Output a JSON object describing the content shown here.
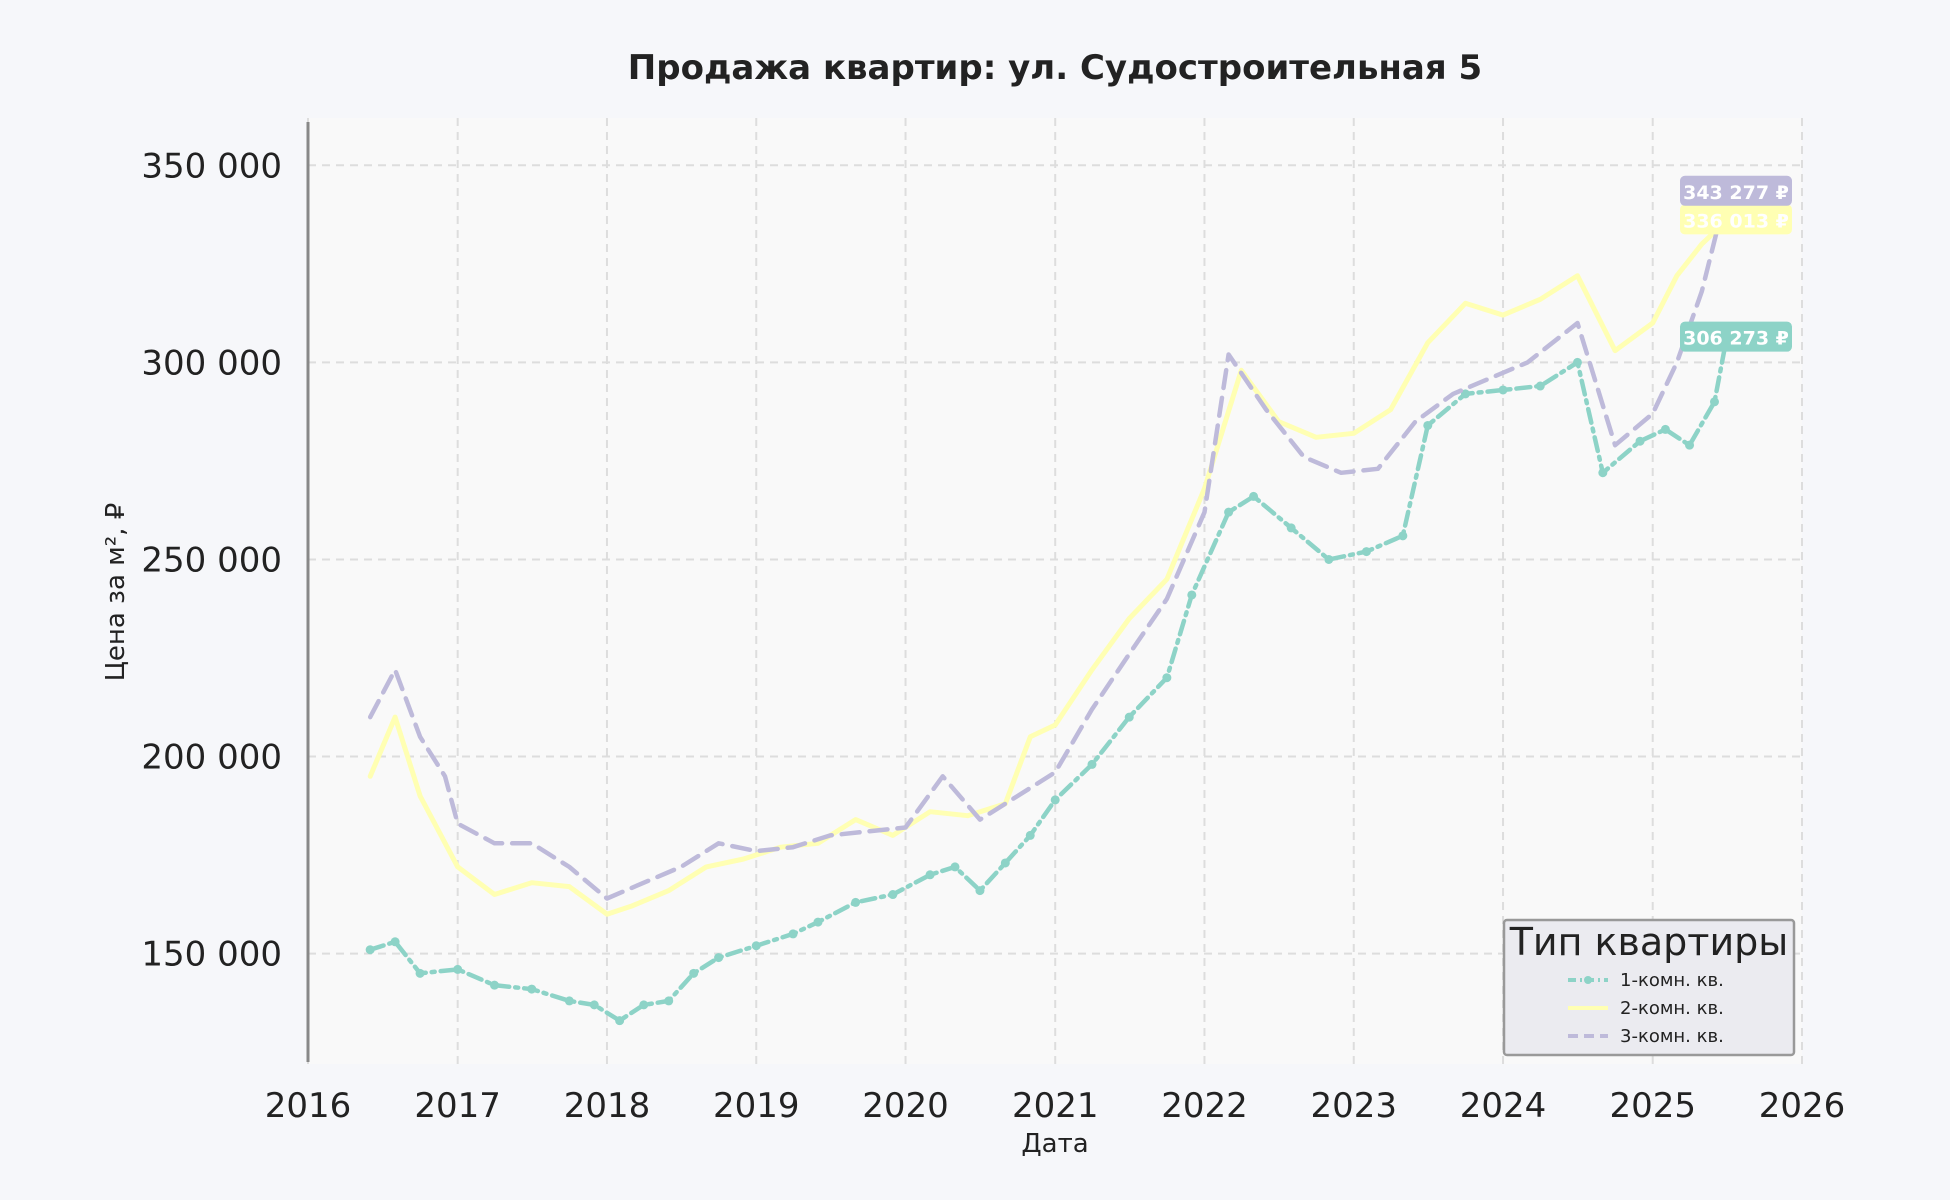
{
  "chart_data": {
    "type": "line",
    "title": "Продажа квартир: ул. Судостроительная 5",
    "xlabel": "Дата",
    "ylabel": "Цена за м², ₽",
    "xlim": [
      "2016-01-01",
      "2026-01-01"
    ],
    "ylim": [
      122000,
      362000
    ],
    "x_ticks": [
      "2016",
      "2017",
      "2018",
      "2019",
      "2020",
      "2021",
      "2022",
      "2023",
      "2024",
      "2025",
      "2026"
    ],
    "y_ticks": [
      {
        "value": 150000,
        "label": "150 000"
      },
      {
        "value": 200000,
        "label": "200 000"
      },
      {
        "value": 250000,
        "label": "250 000"
      },
      {
        "value": 300000,
        "label": "300 000"
      },
      {
        "value": 350000,
        "label": "350 000"
      }
    ],
    "grid": true,
    "legend": {
      "title": "Тип квартиры",
      "position": "lower-right"
    },
    "series": [
      {
        "name": "1-комн. кв.",
        "color": "#8dd3c7",
        "style": "dash-dot-markers",
        "end_label": "306 273 ₽",
        "points": [
          [
            "2016-06-01",
            151000
          ],
          [
            "2016-08-01",
            153000
          ],
          [
            "2016-10-01",
            145000
          ],
          [
            "2017-01-01",
            146000
          ],
          [
            "2017-04-01",
            142000
          ],
          [
            "2017-07-01",
            141000
          ],
          [
            "2017-10-01",
            138000
          ],
          [
            "2017-12-01",
            137000
          ],
          [
            "2018-02-01",
            133000
          ],
          [
            "2018-04-01",
            137000
          ],
          [
            "2018-06-01",
            138000
          ],
          [
            "2018-08-01",
            145000
          ],
          [
            "2018-10-01",
            149000
          ],
          [
            "2019-01-01",
            152000
          ],
          [
            "2019-04-01",
            155000
          ],
          [
            "2019-06-01",
            158000
          ],
          [
            "2019-09-01",
            163000
          ],
          [
            "2019-12-01",
            165000
          ],
          [
            "2020-03-01",
            170000
          ],
          [
            "2020-05-01",
            172000
          ],
          [
            "2020-07-01",
            166000
          ],
          [
            "2020-09-01",
            173000
          ],
          [
            "2020-11-01",
            180000
          ],
          [
            "2021-01-01",
            189000
          ],
          [
            "2021-04-01",
            198000
          ],
          [
            "2021-07-01",
            210000
          ],
          [
            "2021-10-01",
            220000
          ],
          [
            "2021-12-01",
            241000
          ],
          [
            "2022-03-01",
            262000
          ],
          [
            "2022-05-01",
            266000
          ],
          [
            "2022-08-01",
            258000
          ],
          [
            "2022-11-01",
            250000
          ],
          [
            "2023-02-01",
            252000
          ],
          [
            "2023-05-01",
            256000
          ],
          [
            "2023-07-01",
            284000
          ],
          [
            "2023-10-01",
            292000
          ],
          [
            "2024-01-01",
            293000
          ],
          [
            "2024-04-01",
            294000
          ],
          [
            "2024-07-01",
            300000
          ],
          [
            "2024-09-01",
            272000
          ],
          [
            "2024-12-01",
            280000
          ],
          [
            "2025-02-01",
            283000
          ],
          [
            "2025-04-01",
            279000
          ],
          [
            "2025-06-01",
            290000
          ],
          [
            "2025-07-01",
            306273
          ]
        ]
      },
      {
        "name": "2-комн. кв.",
        "color": "#ffffb3",
        "style": "solid",
        "end_label": "336 013 ₽",
        "points": [
          [
            "2016-06-01",
            195000
          ],
          [
            "2016-08-01",
            210000
          ],
          [
            "2016-10-01",
            190000
          ],
          [
            "2017-01-01",
            172000
          ],
          [
            "2017-04-01",
            165000
          ],
          [
            "2017-07-01",
            168000
          ],
          [
            "2017-10-01",
            167000
          ],
          [
            "2018-01-01",
            160000
          ],
          [
            "2018-03-01",
            162000
          ],
          [
            "2018-06-01",
            166000
          ],
          [
            "2018-09-01",
            172000
          ],
          [
            "2018-12-01",
            174000
          ],
          [
            "2019-03-01",
            177000
          ],
          [
            "2019-06-01",
            178000
          ],
          [
            "2019-09-01",
            184000
          ],
          [
            "2019-12-01",
            180000
          ],
          [
            "2020-03-01",
            186000
          ],
          [
            "2020-06-01",
            185000
          ],
          [
            "2020-09-01",
            188000
          ],
          [
            "2020-11-01",
            205000
          ],
          [
            "2021-01-01",
            208000
          ],
          [
            "2021-04-01",
            222000
          ],
          [
            "2021-07-01",
            235000
          ],
          [
            "2021-10-01",
            245000
          ],
          [
            "2022-01-01",
            268000
          ],
          [
            "2022-04-01",
            298000
          ],
          [
            "2022-07-01",
            285000
          ],
          [
            "2022-10-01",
            281000
          ],
          [
            "2023-01-01",
            282000
          ],
          [
            "2023-04-01",
            288000
          ],
          [
            "2023-07-01",
            305000
          ],
          [
            "2023-10-01",
            315000
          ],
          [
            "2024-01-01",
            312000
          ],
          [
            "2024-04-01",
            316000
          ],
          [
            "2024-07-01",
            322000
          ],
          [
            "2024-10-01",
            303000
          ],
          [
            "2025-01-01",
            310000
          ],
          [
            "2025-03-01",
            322000
          ],
          [
            "2025-05-01",
            330000
          ],
          [
            "2025-07-01",
            336013
          ]
        ]
      },
      {
        "name": "3-комн. кв.",
        "color": "#bebada",
        "style": "dashed",
        "end_label": "343 277 ₽",
        "points": [
          [
            "2016-06-01",
            210000
          ],
          [
            "2016-08-01",
            222000
          ],
          [
            "2016-10-01",
            205000
          ],
          [
            "2016-12-01",
            195000
          ],
          [
            "2017-01-01",
            183000
          ],
          [
            "2017-04-01",
            178000
          ],
          [
            "2017-07-01",
            178000
          ],
          [
            "2017-10-01",
            172000
          ],
          [
            "2018-01-01",
            164000
          ],
          [
            "2018-04-01",
            168000
          ],
          [
            "2018-07-01",
            172000
          ],
          [
            "2018-10-01",
            178000
          ],
          [
            "2019-01-01",
            176000
          ],
          [
            "2019-04-01",
            177000
          ],
          [
            "2019-07-01",
            180000
          ],
          [
            "2019-10-01",
            181000
          ],
          [
            "2020-01-01",
            182000
          ],
          [
            "2020-04-01",
            195000
          ],
          [
            "2020-07-01",
            184000
          ],
          [
            "2020-10-01",
            190000
          ],
          [
            "2021-01-01",
            196000
          ],
          [
            "2021-04-01",
            212000
          ],
          [
            "2021-07-01",
            226000
          ],
          [
            "2021-10-01",
            240000
          ],
          [
            "2022-01-01",
            262000
          ],
          [
            "2022-03-01",
            302000
          ],
          [
            "2022-06-01",
            288000
          ],
          [
            "2022-09-01",
            276000
          ],
          [
            "2022-12-01",
            272000
          ],
          [
            "2023-03-01",
            273000
          ],
          [
            "2023-06-01",
            285000
          ],
          [
            "2023-09-01",
            292000
          ],
          [
            "2023-12-01",
            296000
          ],
          [
            "2024-03-01",
            300000
          ],
          [
            "2024-07-01",
            310000
          ],
          [
            "2024-10-01",
            279000
          ],
          [
            "2025-01-01",
            287000
          ],
          [
            "2025-03-01",
            300000
          ],
          [
            "2025-05-01",
            318000
          ],
          [
            "2025-07-01",
            343277
          ]
        ]
      }
    ]
  }
}
